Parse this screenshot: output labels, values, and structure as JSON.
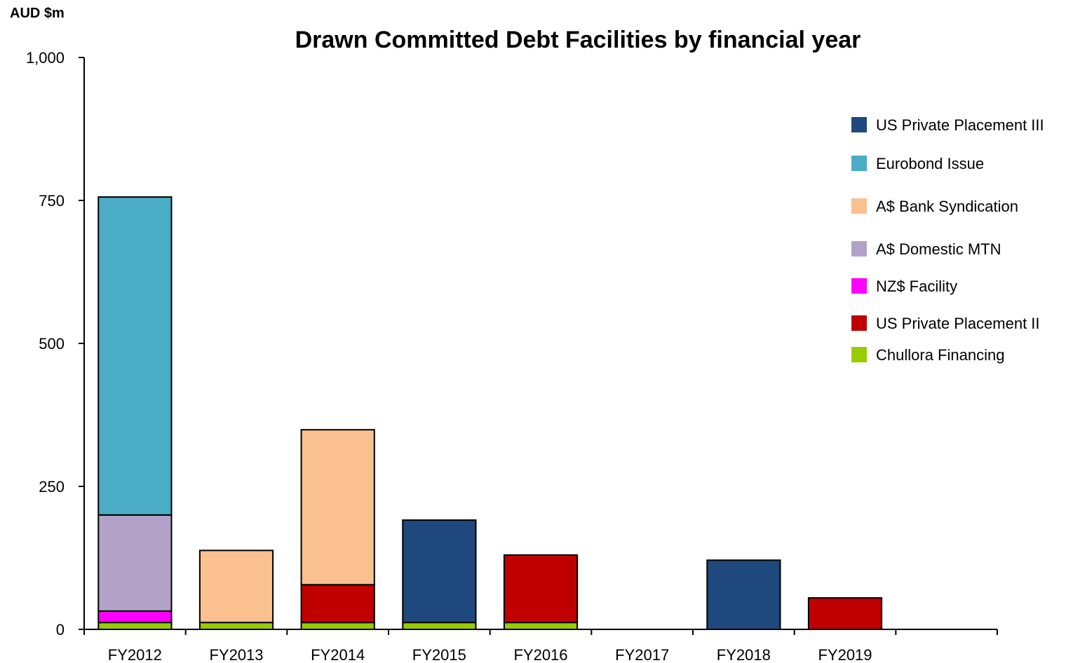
{
  "chart_data": {
    "type": "bar",
    "stacked": true,
    "title": "Drawn Committed Debt Facilities by financial year",
    "ylabel": "AUD $m",
    "xlabel": "",
    "ylim": [
      0,
      1000
    ],
    "yticks": [
      0,
      250,
      500,
      750,
      1000
    ],
    "ytick_labels": [
      "0",
      "250",
      "500",
      "750",
      "1,000"
    ],
    "grid": false,
    "legend_position": "right",
    "categories": [
      "FY2012",
      "FY2013",
      "FY2014",
      "FY2015",
      "FY2016",
      "FY2017",
      "FY2018",
      "FY2019",
      ""
    ],
    "series": [
      {
        "name": "Chullora Financing",
        "color": "#99CC00",
        "values": [
          12,
          12,
          12,
          12,
          12,
          0,
          0,
          0,
          0
        ]
      },
      {
        "name": "US Private Placement II",
        "color": "#C00000",
        "values": [
          0,
          0,
          66,
          0,
          118,
          0,
          0,
          55,
          0
        ]
      },
      {
        "name": "NZ$ Facility",
        "color": "#FF00FF",
        "values": [
          20,
          0,
          0,
          0,
          0,
          0,
          0,
          0,
          0
        ]
      },
      {
        "name": "A$ Domestic MTN",
        "color": "#B3A2C7",
        "values": [
          168,
          0,
          0,
          0,
          0,
          0,
          0,
          0,
          0
        ]
      },
      {
        "name": "A$ Bank Syndication",
        "color": "#FAC090",
        "values": [
          0,
          126,
          271,
          0,
          0,
          0,
          0,
          0,
          0
        ]
      },
      {
        "name": "Eurobond Issue",
        "color": "#4BACC6",
        "values": [
          556,
          0,
          0,
          0,
          0,
          0,
          0,
          0,
          0
        ]
      },
      {
        "name": "US Private Placement III",
        "color": "#1F497D",
        "values": [
          0,
          0,
          0,
          179,
          0,
          0,
          121,
          0,
          0
        ]
      }
    ],
    "legend_order": [
      "US Private Placement III",
      "Eurobond Issue",
      "A$ Bank Syndication",
      "A$ Domestic MTN",
      "NZ$ Facility",
      "US Private Placement II",
      "Chullora Financing"
    ]
  }
}
